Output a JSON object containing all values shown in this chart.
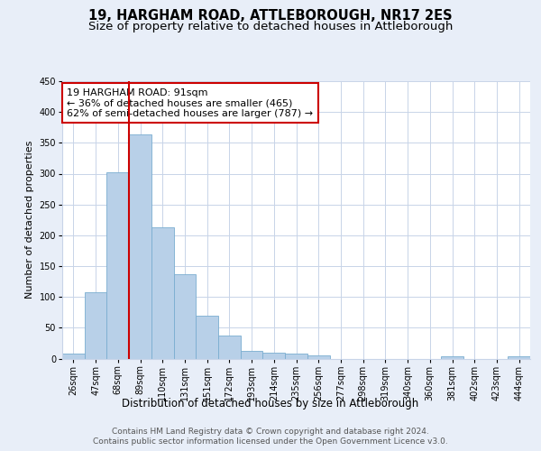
{
  "title": "19, HARGHAM ROAD, ATTLEBOROUGH, NR17 2ES",
  "subtitle": "Size of property relative to detached houses in Attleborough",
  "xlabel": "Distribution of detached houses by size in Attleborough",
  "ylabel": "Number of detached properties",
  "footer_line1": "Contains HM Land Registry data © Crown copyright and database right 2024.",
  "footer_line2": "Contains public sector information licensed under the Open Government Licence v3.0.",
  "categories": [
    "26sqm",
    "47sqm",
    "68sqm",
    "89sqm",
    "110sqm",
    "131sqm",
    "151sqm",
    "172sqm",
    "193sqm",
    "214sqm",
    "235sqm",
    "256sqm",
    "277sqm",
    "298sqm",
    "319sqm",
    "340sqm",
    "360sqm",
    "381sqm",
    "402sqm",
    "423sqm",
    "444sqm"
  ],
  "values": [
    8,
    107,
    302,
    363,
    213,
    137,
    70,
    38,
    13,
    10,
    8,
    5,
    0,
    0,
    0,
    0,
    0,
    3,
    0,
    0,
    3
  ],
  "bar_color": "#b8d0e8",
  "bar_edge_color": "#7aadd0",
  "vline_x_index": 3,
  "vline_color": "#cc0000",
  "annotation_text": "19 HARGHAM ROAD: 91sqm\n← 36% of detached houses are smaller (465)\n62% of semi-detached houses are larger (787) →",
  "annotation_box_facecolor": "#ffffff",
  "annotation_box_edgecolor": "#cc0000",
  "ylim": [
    0,
    450
  ],
  "yticks": [
    0,
    50,
    100,
    150,
    200,
    250,
    300,
    350,
    400,
    450
  ],
  "background_color": "#e8eef8",
  "plot_background": "#ffffff",
  "grid_color": "#c8d4e8",
  "title_fontsize": 10.5,
  "subtitle_fontsize": 9.5,
  "xlabel_fontsize": 8.5,
  "ylabel_fontsize": 8,
  "tick_fontsize": 7,
  "annotation_fontsize": 8,
  "footer_fontsize": 6.5
}
